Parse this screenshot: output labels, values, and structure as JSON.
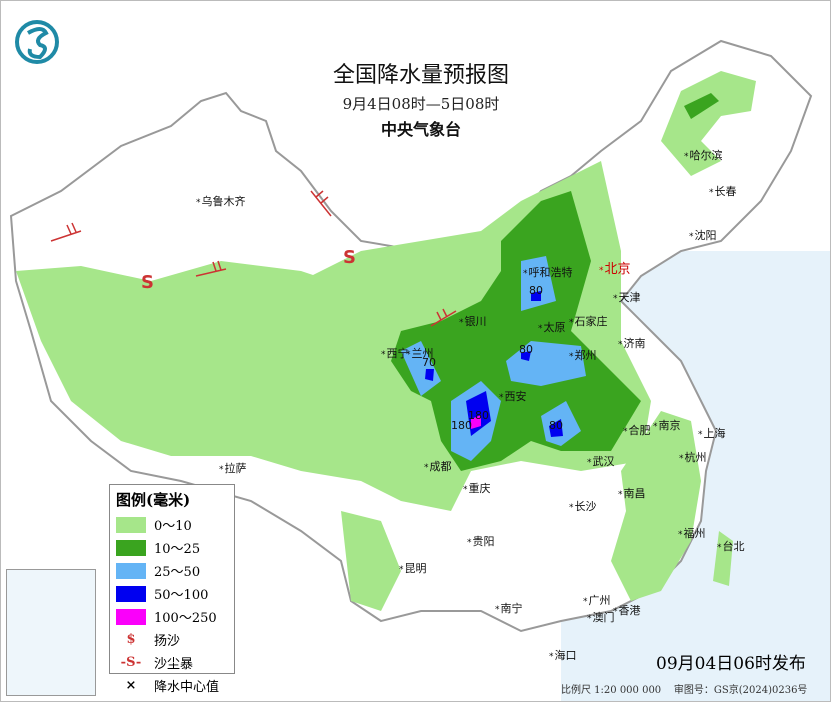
{
  "header": {
    "title": "全国降水量预报图",
    "period": "9月4日08时—5日08时",
    "agency": "中央气象台"
  },
  "legend": {
    "title": "图例(毫米)",
    "ranges": [
      {
        "label": "0～10",
        "color": "#a6e68a"
      },
      {
        "label": "10～25",
        "color": "#3aa41f"
      },
      {
        "label": "25～50",
        "color": "#64b4f5"
      },
      {
        "label": "50～100",
        "color": "#0000f0"
      },
      {
        "label": "100～250",
        "color": "#fa00fa"
      }
    ],
    "symbols": [
      {
        "label": "扬沙",
        "icon": "blowing-sand-icon"
      },
      {
        "label": "沙尘暴",
        "icon": "sandstorm-icon"
      },
      {
        "label": "降水中心值",
        "icon": "cross-icon"
      }
    ]
  },
  "cities": [
    "乌鲁木齐",
    "哈尔滨",
    "长春",
    "沈阳",
    "呼和浩特",
    "北京",
    "天津",
    "银川",
    "太原",
    "石家庄",
    "济南",
    "西宁",
    "兰州",
    "郑州",
    "西安",
    "合肥",
    "南京",
    "上海",
    "成都",
    "武汉",
    "杭州",
    "重庆",
    "长沙",
    "南昌",
    "贵阳",
    "福州",
    "台北",
    "昆明",
    "南宁",
    "广州",
    "澳门",
    "香港",
    "海口",
    "拉萨"
  ],
  "center_values": [
    "80",
    "80",
    "70",
    "180",
    "180",
    "80"
  ],
  "footer": {
    "issued": "09月04日06时发布",
    "scale": "比例尺 1:20 000 000",
    "map_no": "审图号：GS京(2024)0236号"
  }
}
